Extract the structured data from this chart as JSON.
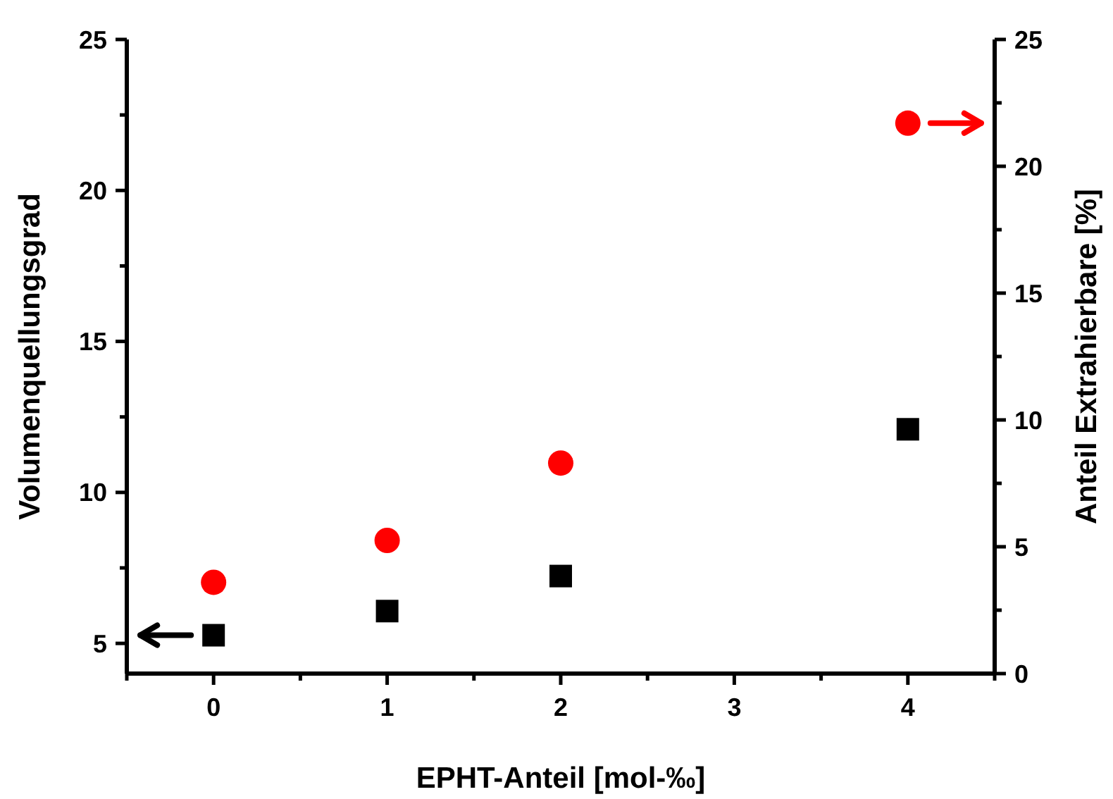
{
  "chart_data": {
    "type": "scatter",
    "xlabel": "EPHT-Anteil [mol-‰]",
    "ylabel": "Volumenquellungsgrad",
    "y2label": "Anteil Extrahierbare [%]",
    "x": [
      0,
      1,
      2,
      4
    ],
    "series": [
      {
        "color": "#000000",
        "marker": "square",
        "values": [
          5.27,
          6.07,
          7.23,
          12.09
        ]
      },
      {
        "color": "#ff0000",
        "marker": "circle",
        "axis": "y2",
        "values": [
          3.6,
          5.25,
          8.3,
          21.7
        ]
      }
    ],
    "xlim": [
      -0.5,
      4.5
    ],
    "xticks": [
      {
        "value": -0.5,
        "label": null
      },
      0,
      {
        "value": 0.5,
        "label": null
      },
      1,
      {
        "value": 1.5,
        "label": null
      },
      2,
      {
        "value": 2.5,
        "label": null
      },
      3,
      {
        "value": 3.5,
        "label": null
      },
      4,
      {
        "value": 4.5,
        "label": null
      }
    ],
    "ylim": [
      4,
      25
    ],
    "yticks": [
      5,
      {
        "value": 7.5,
        "label": null
      },
      10,
      {
        "value": 12.5,
        "label": null
      },
      15,
      {
        "value": 17.5,
        "label": null
      },
      20,
      {
        "value": 22.5,
        "label": null
      },
      25
    ],
    "y2lim": [
      0,
      25
    ],
    "y2ticks": [
      0,
      {
        "value": 2.5,
        "label": null
      },
      5,
      {
        "value": 7.5,
        "label": null
      },
      10,
      {
        "value": 12.5,
        "label": null
      },
      15,
      {
        "value": 17.5,
        "label": null
      },
      20,
      {
        "value": 22.5,
        "label": null
      },
      25
    ]
  }
}
